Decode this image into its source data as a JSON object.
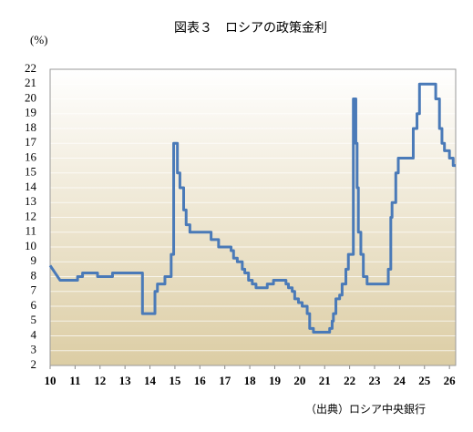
{
  "chart_data": {
    "type": "line",
    "title": "図表３　ロシアの政策金利",
    "y_label": "(%)",
    "source": "（出典）ロシア中央銀行",
    "x": [
      10,
      10.1,
      10.2,
      10.3,
      10.4,
      11.1,
      11.1,
      11.3,
      11.3,
      11.9,
      11.9,
      12.5,
      12.5,
      13.7,
      13.7,
      14.2,
      14.2,
      14.3,
      14.3,
      14.6,
      14.6,
      14.85,
      14.85,
      14.95,
      14.95,
      15.1,
      15.1,
      15.2,
      15.2,
      15.35,
      15.35,
      15.45,
      15.45,
      15.6,
      15.6,
      16.45,
      16.45,
      16.75,
      16.75,
      17.25,
      17.25,
      17.35,
      17.35,
      17.5,
      17.5,
      17.7,
      17.7,
      17.8,
      17.8,
      17.95,
      17.95,
      18.1,
      18.1,
      18.25,
      18.25,
      18.7,
      18.7,
      18.95,
      18.95,
      19.45,
      19.45,
      19.55,
      19.55,
      19.7,
      19.7,
      19.8,
      19.8,
      19.95,
      19.95,
      20.1,
      20.1,
      20.3,
      20.3,
      20.4,
      20.4,
      20.55,
      20.55,
      21.2,
      21.2,
      21.3,
      21.3,
      21.35,
      21.35,
      21.45,
      21.45,
      21.6,
      21.6,
      21.7,
      21.7,
      21.85,
      21.85,
      21.95,
      21.95,
      22.15,
      22.15,
      22.25,
      22.25,
      22.3,
      22.3,
      22.35,
      22.35,
      22.45,
      22.45,
      22.55,
      22.55,
      22.7,
      22.7,
      23.55,
      23.55,
      23.65,
      23.65,
      23.7,
      23.7,
      23.85,
      23.85,
      23.95,
      23.95,
      24.55,
      24.55,
      24.7,
      24.7,
      24.8,
      24.8,
      25.45,
      25.45,
      25.6,
      25.6,
      25.7,
      25.7,
      25.8,
      25.8,
      26.0,
      26.0,
      26.15,
      26.15,
      26.25
    ],
    "series": [
      {
        "name": "policy rate",
        "color": "#4a7ab8",
        "values": [
          8.75,
          8.5,
          8.25,
          8,
          7.75,
          7.75,
          8,
          8,
          8.25,
          8.25,
          8,
          8,
          8.25,
          8.25,
          5.5,
          5.5,
          7,
          7,
          7.5,
          7.5,
          8,
          8,
          9.5,
          9.5,
          17,
          17,
          15,
          15,
          14,
          14,
          12.5,
          12.5,
          11.5,
          11.5,
          11,
          11,
          10.5,
          10.5,
          10,
          10,
          9.75,
          9.75,
          9.25,
          9.25,
          9,
          9,
          8.5,
          8.5,
          8.25,
          8.25,
          7.75,
          7.75,
          7.5,
          7.5,
          7.25,
          7.25,
          7.5,
          7.5,
          7.75,
          7.75,
          7.5,
          7.5,
          7.25,
          7.25,
          7,
          7,
          6.5,
          6.5,
          6.25,
          6.25,
          6,
          6,
          5.5,
          5.5,
          4.5,
          4.5,
          4.25,
          4.25,
          4.5,
          4.5,
          5,
          5,
          5.5,
          5.5,
          6.5,
          6.5,
          6.75,
          6.75,
          7.5,
          7.5,
          8.5,
          8.5,
          9.5,
          9.5,
          20,
          20,
          17,
          17,
          14,
          14,
          11,
          11,
          9.5,
          9.5,
          8,
          8,
          7.5,
          7.5,
          8.5,
          8.5,
          12,
          12,
          13,
          13,
          15,
          15,
          16,
          16,
          18,
          18,
          19,
          19,
          21,
          21,
          20,
          20,
          18,
          18,
          17,
          17,
          16.5,
          16.5,
          16,
          16,
          15.5,
          15.5
        ]
      }
    ],
    "xlim": [
      10,
      26.25
    ],
    "ylim": [
      2,
      22
    ],
    "xticks": [
      10,
      11,
      12,
      13,
      14,
      15,
      16,
      17,
      18,
      19,
      20,
      21,
      22,
      23,
      24,
      25,
      26
    ],
    "yticks": [
      2,
      3,
      4,
      5,
      6,
      7,
      8,
      9,
      10,
      11,
      12,
      13,
      14,
      15,
      16,
      17,
      18,
      19,
      20,
      21,
      22
    ],
    "grid": true
  }
}
